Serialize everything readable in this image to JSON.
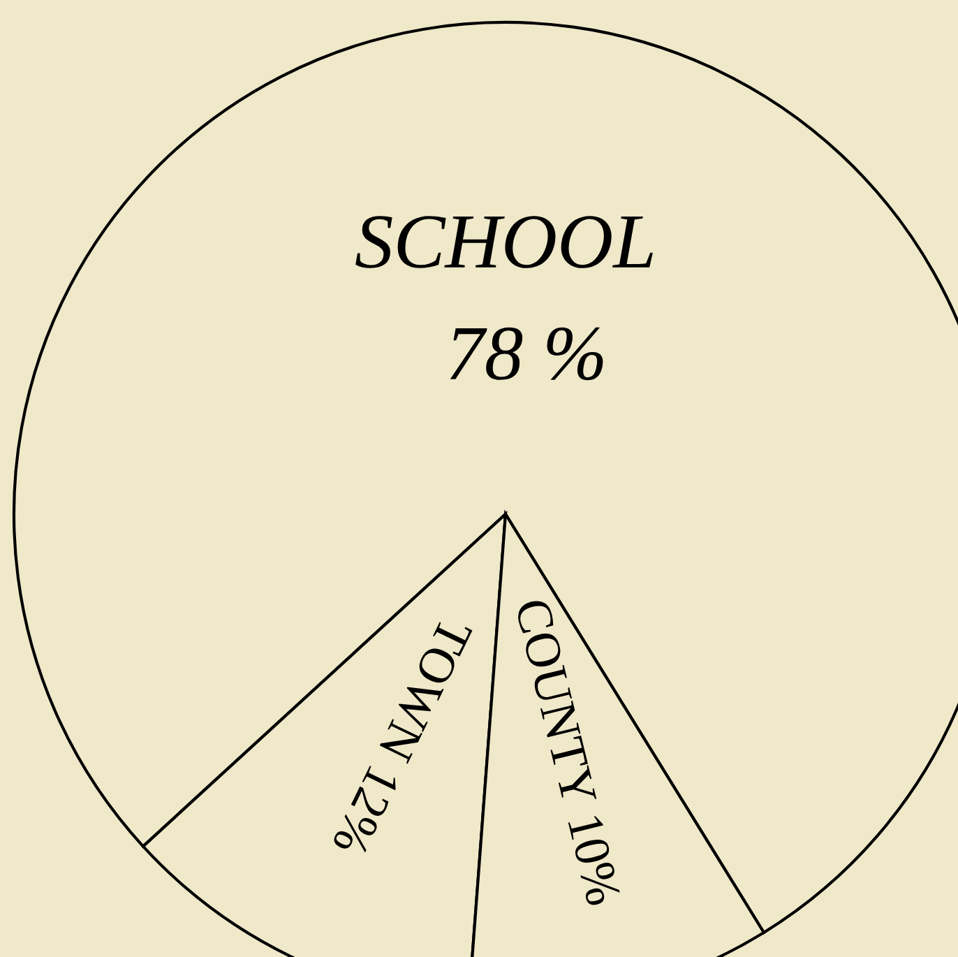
{
  "chart_data": {
    "type": "pie",
    "categories": [
      "SCHOOL",
      "TOWN",
      "COUNTY"
    ],
    "values": [
      78,
      12,
      10
    ],
    "colors": [
      "#efe8c9",
      "#efe8c9",
      "#efe8c9"
    ],
    "value_labels": [
      "78 %",
      "12%",
      "10%"
    ]
  }
}
